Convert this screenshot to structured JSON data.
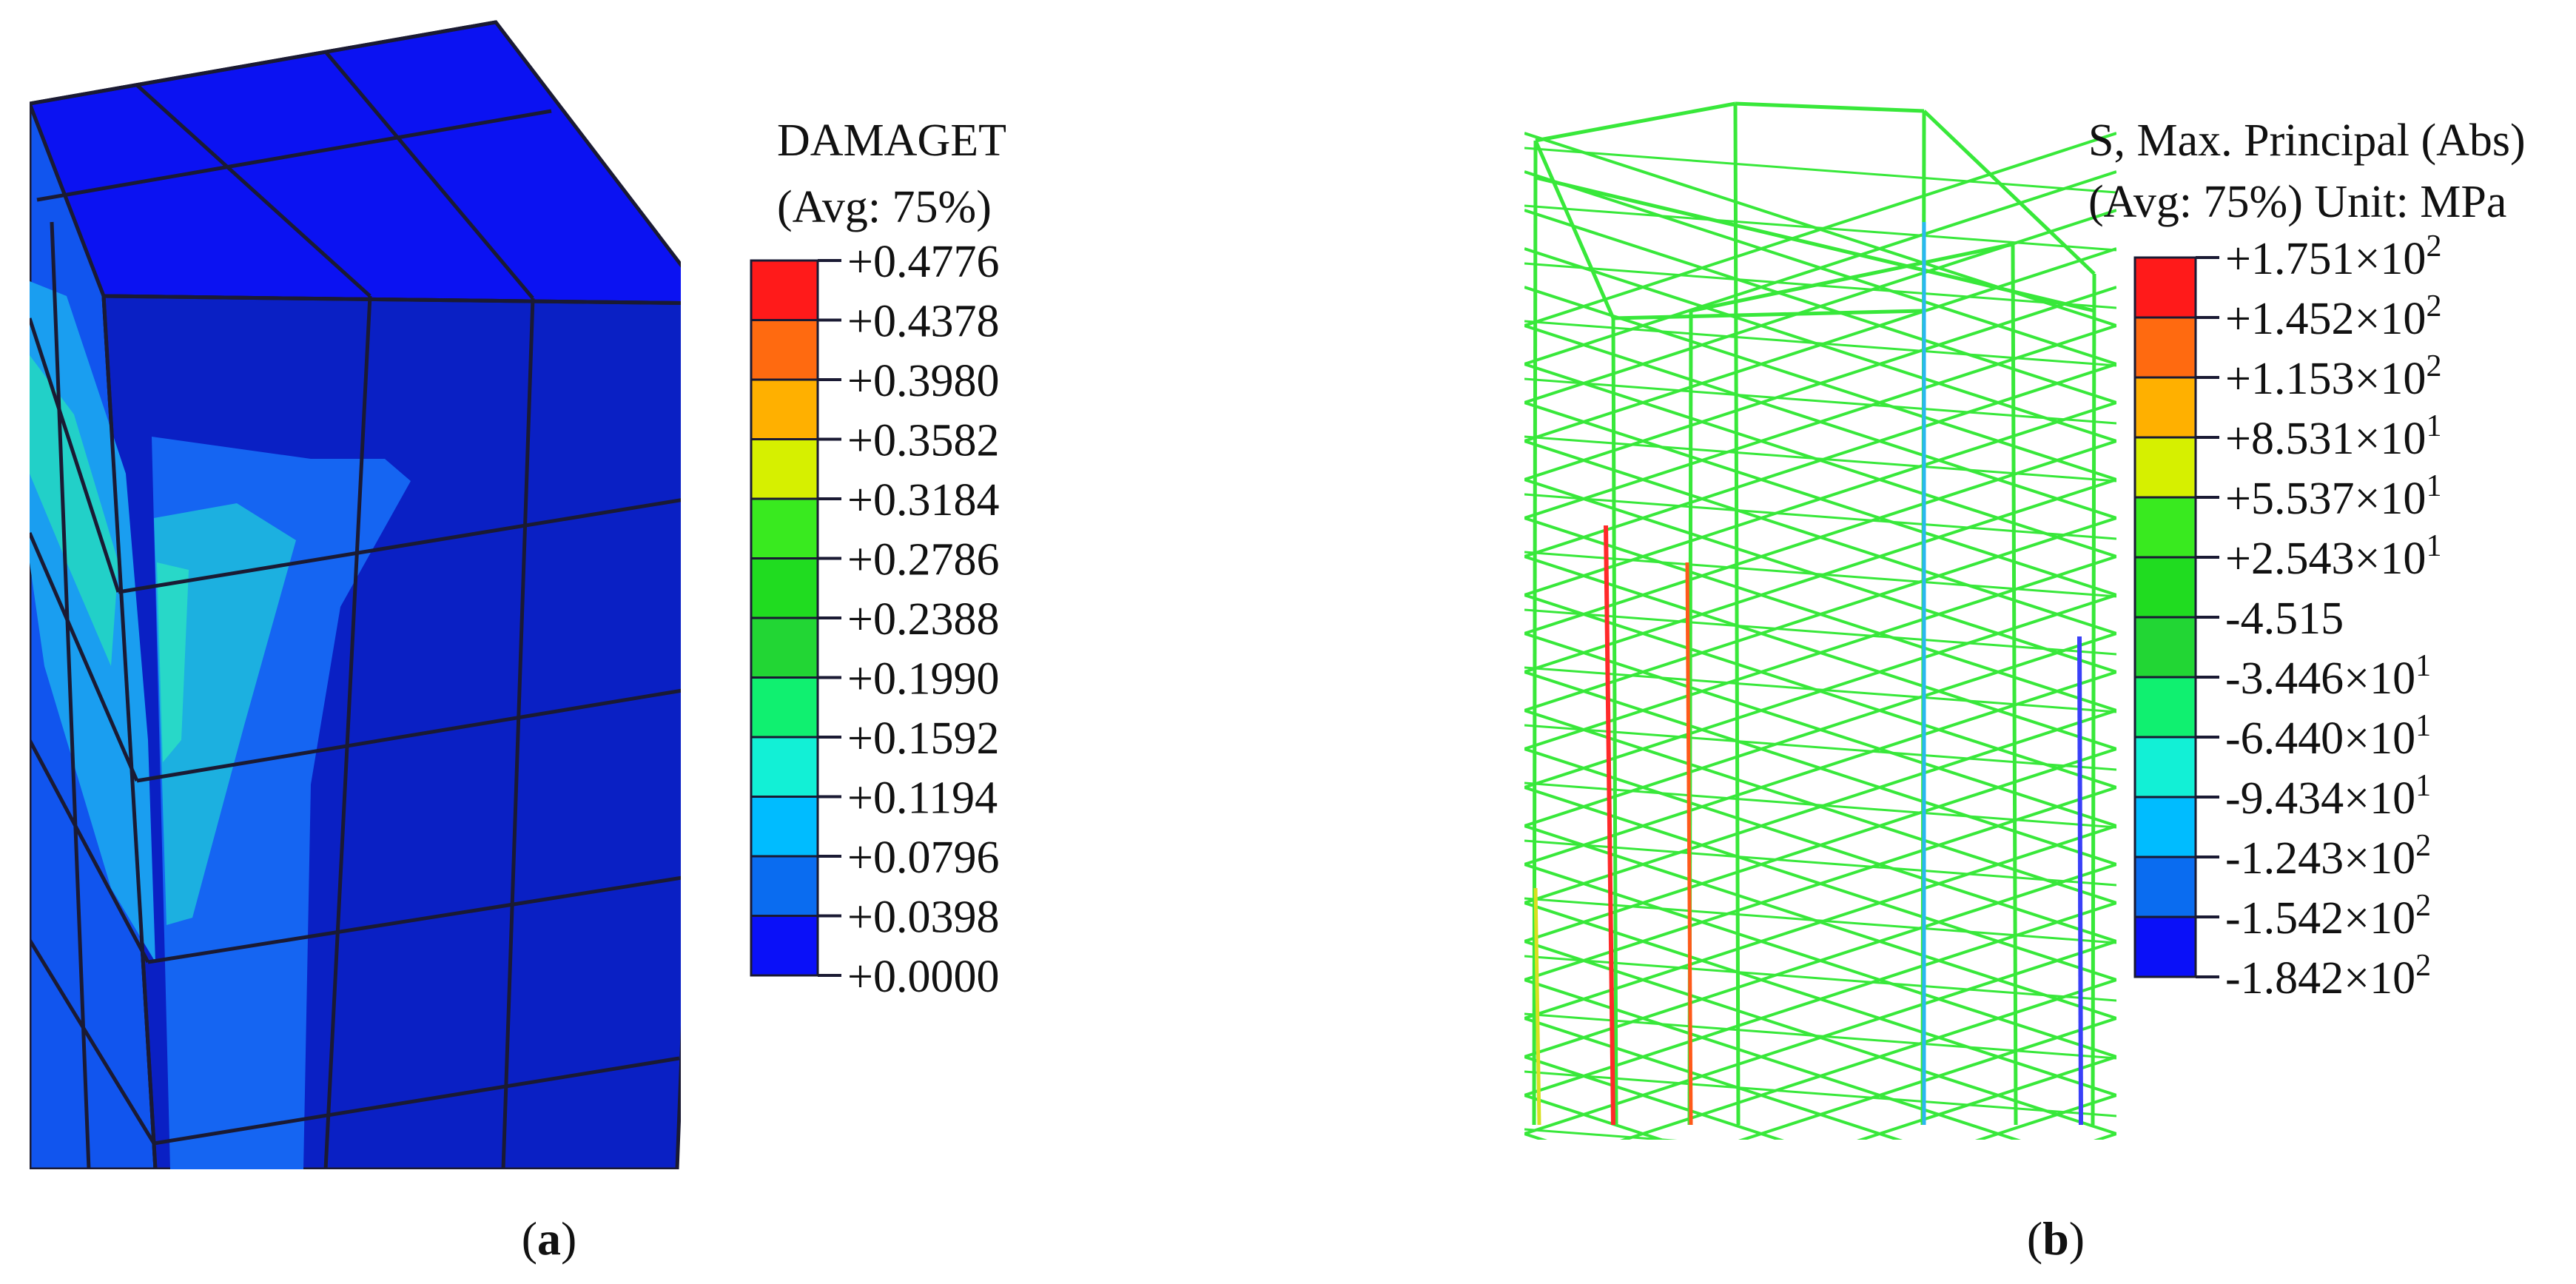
{
  "colors": {
    "background": "#ffffff",
    "mesh_line": "#1a1a33",
    "truss_green": "#38e83a"
  },
  "panel_a": {
    "legend": {
      "title": "DAMAGET",
      "subtitle": "(Avg: 75%)",
      "labels": [
        "+0.4776",
        "+0.4378",
        "+0.3980",
        "+0.3582",
        "+0.3184",
        "+0.2786",
        "+0.2388",
        "+0.1990",
        "+0.1592",
        "+0.1194",
        "+0.0796",
        "+0.0398",
        "+0.0000"
      ],
      "band_colors": [
        "#ff1a1a",
        "#ff6a10",
        "#ffb000",
        "#d6f000",
        "#39ea1f",
        "#20dc20",
        "#22d634",
        "#10f070",
        "#12f0d6",
        "#00bcff",
        "#0a6cf0",
        "#0a10f8"
      ]
    },
    "caption": "(a)",
    "caption_letter": "a"
  },
  "panel_b": {
    "legend": {
      "title": "S, Max. Principal (Abs)",
      "subtitle": "(Avg: 75%)  Unit: MPa",
      "labels": [
        {
          "mantissa": "+1.751",
          "exp": "2"
        },
        {
          "mantissa": "+1.452",
          "exp": "2"
        },
        {
          "mantissa": "+1.153",
          "exp": "2"
        },
        {
          "mantissa": "+8.531",
          "exp": "1"
        },
        {
          "mantissa": "+5.537",
          "exp": "1"
        },
        {
          "mantissa": "+2.543",
          "exp": "1"
        },
        {
          "mantissa": "-4.515",
          "exp": ""
        },
        {
          "mantissa": "-3.446",
          "exp": "1"
        },
        {
          "mantissa": "-6.440",
          "exp": "1"
        },
        {
          "mantissa": "-9.434",
          "exp": "1"
        },
        {
          "mantissa": "-1.243",
          "exp": "2"
        },
        {
          "mantissa": "-1.542",
          "exp": "2"
        },
        {
          "mantissa": "-1.842",
          "exp": "2"
        }
      ],
      "times_ten": "×10",
      "band_colors": [
        "#ff1a1a",
        "#ff6a10",
        "#ffb000",
        "#d6f000",
        "#39ea1f",
        "#20dc20",
        "#22d634",
        "#10f070",
        "#12f0d6",
        "#00bcff",
        "#0a6cf0",
        "#0a10f8"
      ]
    },
    "caption": "(b)",
    "caption_letter": "b"
  }
}
